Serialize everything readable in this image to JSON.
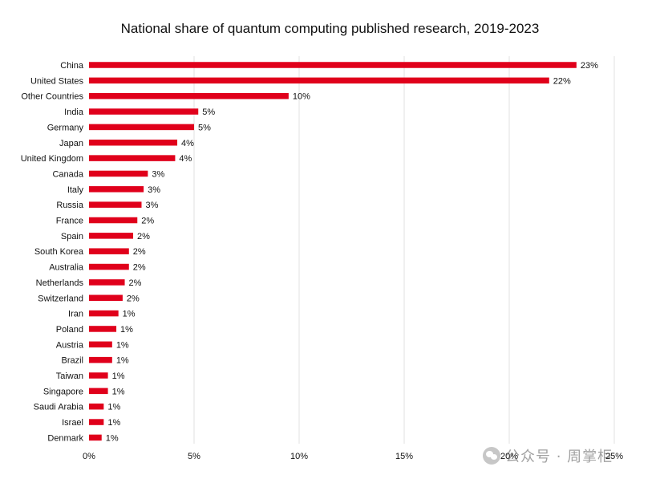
{
  "chart_data": {
    "type": "bar",
    "orientation": "horizontal",
    "title": "National share of quantum computing published research, 2019-2023",
    "xlabel": "",
    "ylabel": "",
    "xlim": [
      0,
      25
    ],
    "xticks": [
      0,
      5,
      10,
      15,
      20,
      25
    ],
    "xtick_labels": [
      "0%",
      "5%",
      "10%",
      "15%",
      "20%",
      "25%"
    ],
    "grid": "vertical",
    "bar_color": "#e0001b",
    "categories": [
      "China",
      "United States",
      "Other Countries",
      "India",
      "Germany",
      "Japan",
      "United Kingdom",
      "Canada",
      "Italy",
      "Russia",
      "France",
      "Spain",
      "South Korea",
      "Australia",
      "Netherlands",
      "Switzerland",
      "Iran",
      "Poland",
      "Austria",
      "Brazil",
      "Taiwan",
      "Singapore",
      "Saudi Arabia",
      "Israel",
      "Denmark"
    ],
    "values": [
      23.2,
      21.9,
      9.5,
      5.2,
      5.0,
      4.2,
      4.1,
      2.8,
      2.6,
      2.5,
      2.3,
      2.1,
      1.9,
      1.9,
      1.7,
      1.6,
      1.4,
      1.3,
      1.1,
      1.1,
      0.9,
      0.9,
      0.7,
      0.7,
      0.6
    ],
    "value_labels": [
      "23%",
      "22%",
      "10%",
      "5%",
      "5%",
      "4%",
      "4%",
      "3%",
      "3%",
      "3%",
      "2%",
      "2%",
      "2%",
      "2%",
      "2%",
      "2%",
      "1%",
      "1%",
      "1%",
      "1%",
      "1%",
      "1%",
      "1%",
      "1%",
      "1%"
    ]
  },
  "watermark": {
    "text": "公众号 · 周掌柜",
    "logo": "wechat-logo-icon"
  }
}
